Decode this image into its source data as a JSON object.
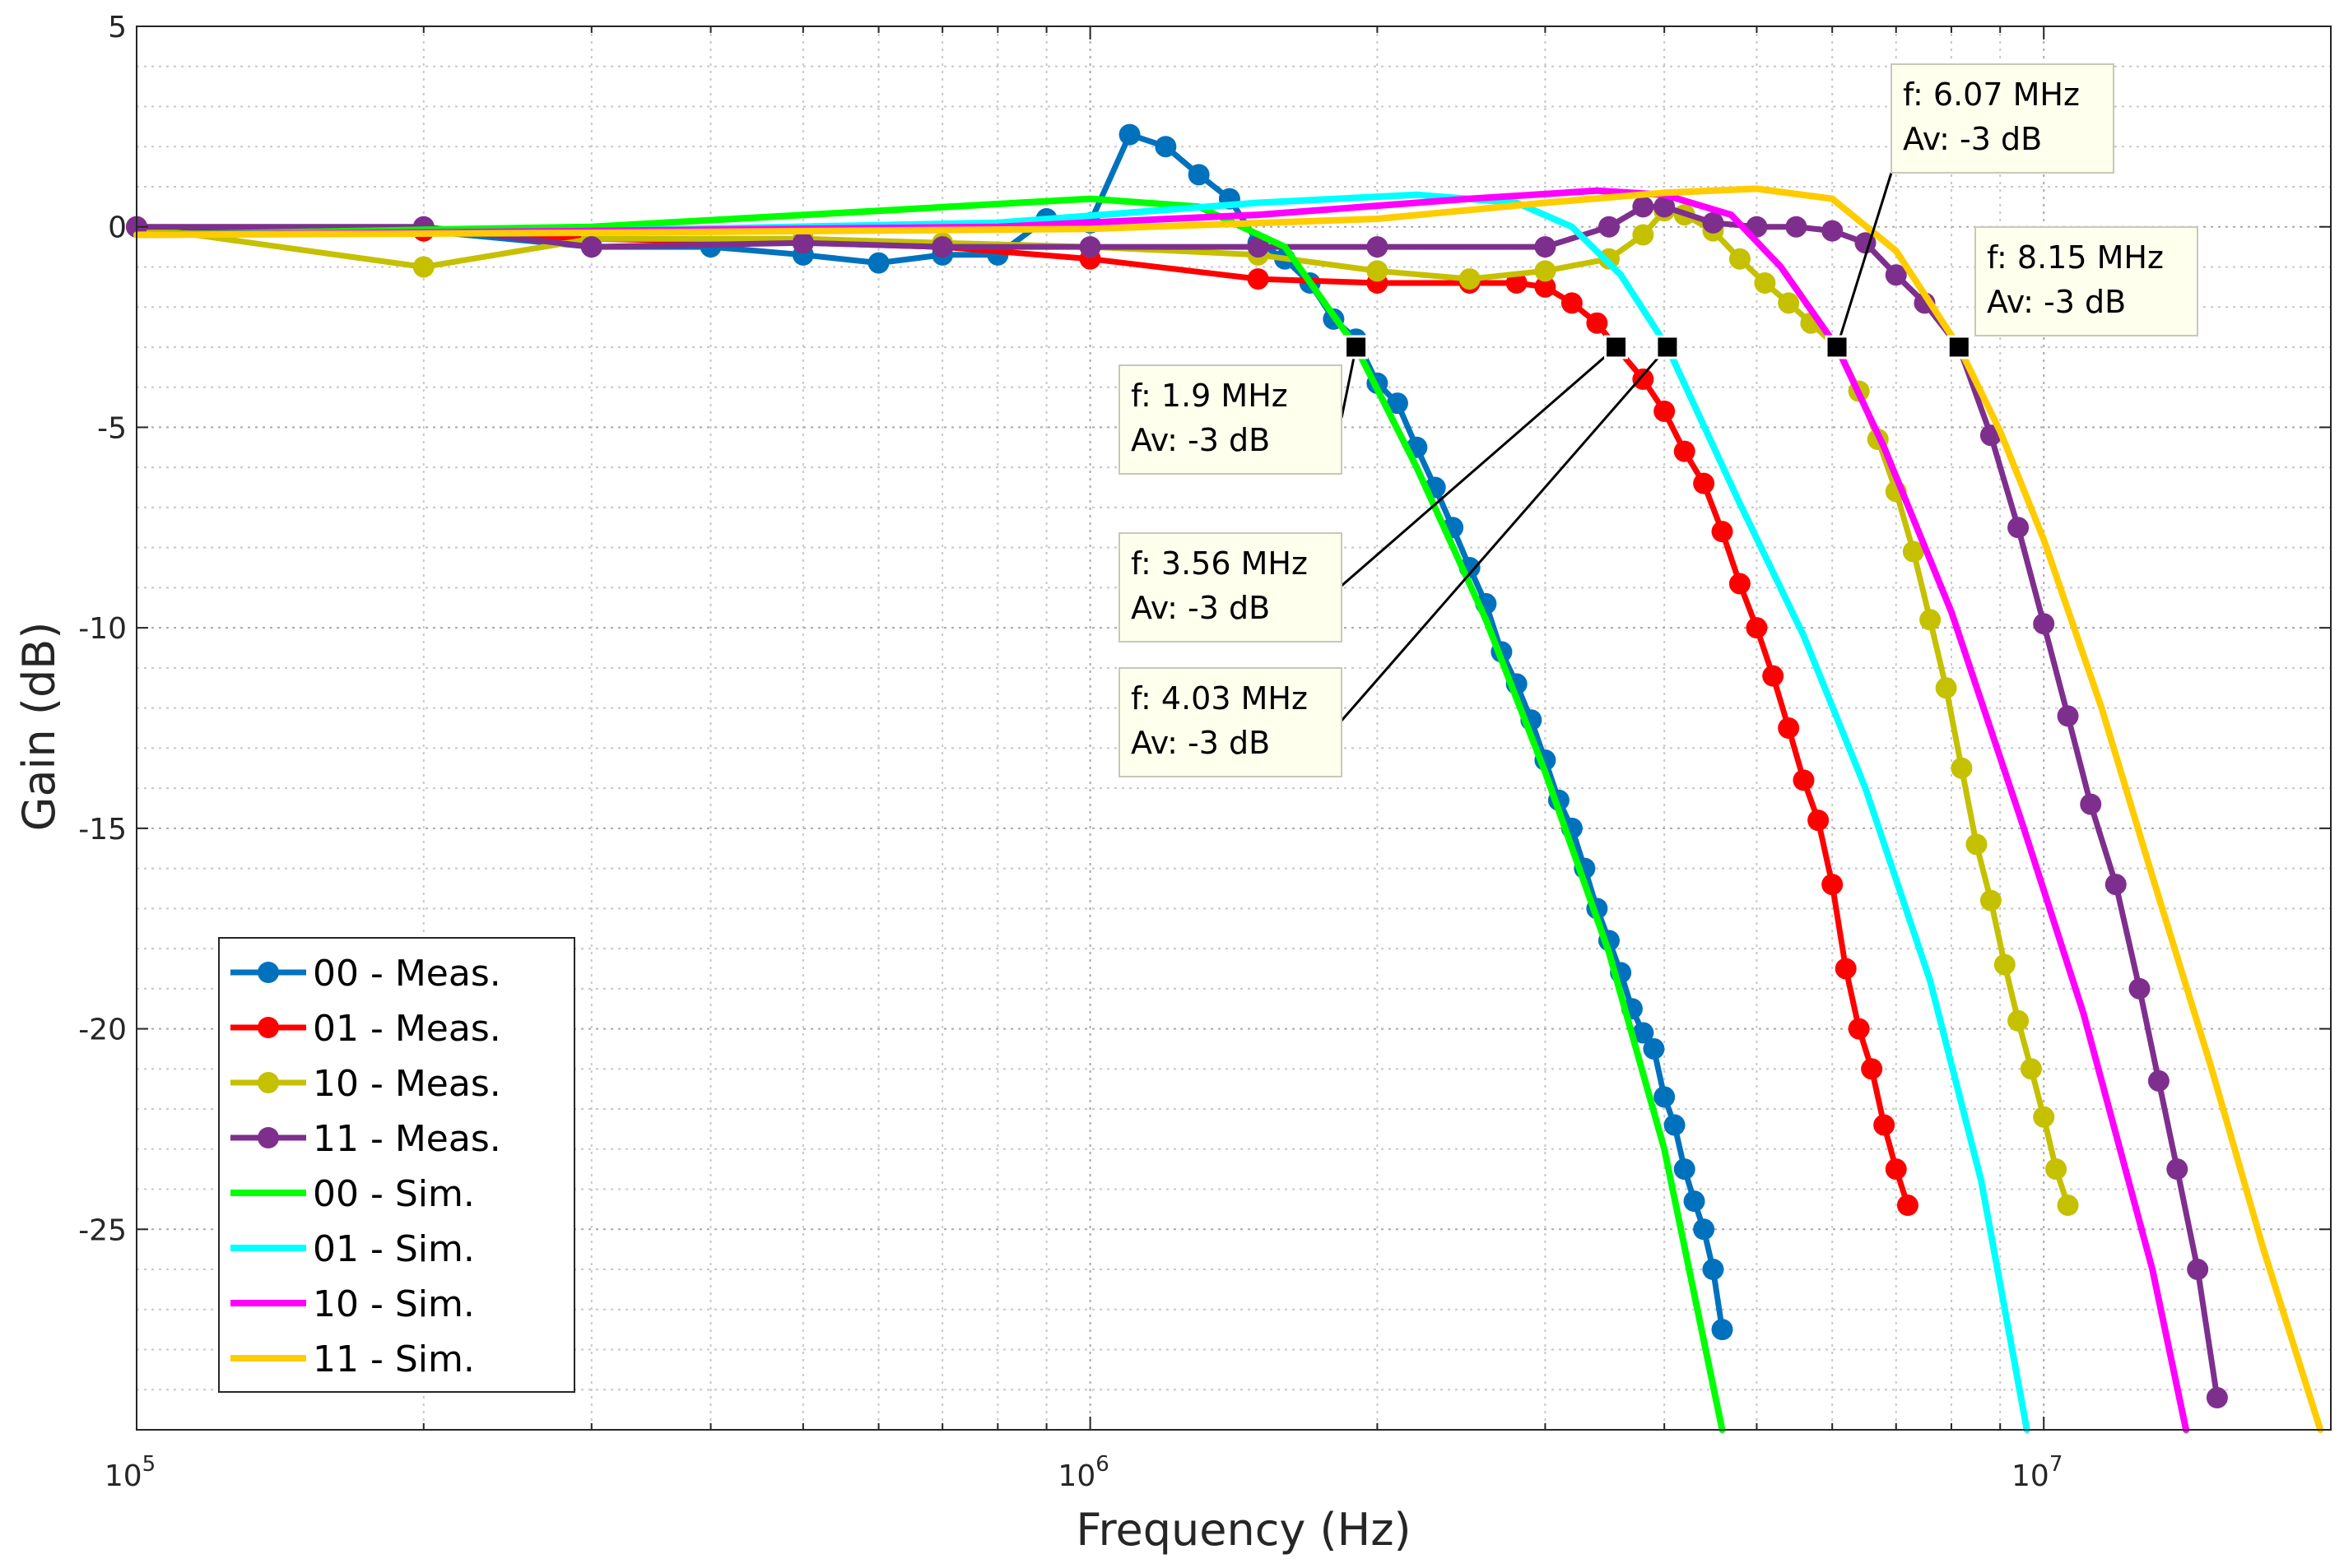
{
  "chart_data": {
    "type": "line",
    "xlabel": "Frequency (Hz)",
    "ylabel": "Gain (dB)",
    "xscale": "log",
    "xlim": [
      100000,
      20000000
    ],
    "ylim": [
      -30,
      5
    ],
    "grid": "major and minor",
    "legend_position": "bottom-left",
    "y_ticks": [
      5,
      0,
      -5,
      -10,
      -15,
      -20,
      -25
    ],
    "x_ticks": [
      {
        "value": 100000,
        "base": "10",
        "exp": "5"
      },
      {
        "value": 1000000,
        "base": "10",
        "exp": "6"
      },
      {
        "value": 10000000,
        "base": "10",
        "exp": "7"
      }
    ],
    "series": [
      {
        "name": "00 - Meas.",
        "color": "#0072BD",
        "style": "markers",
        "x": [
          100000,
          200000,
          300000,
          400000,
          500000,
          600000,
          700000,
          800000,
          900000,
          1000000,
          1100000,
          1200000,
          1300000,
          1400000,
          1500000,
          1600000,
          1700000,
          1800000,
          1900000,
          2000000,
          2100000,
          2200000,
          2300000,
          2400000,
          2500000,
          2600000,
          2700000,
          2800000,
          2900000,
          3000000,
          3100000,
          3200000,
          3300000,
          3400000,
          3500000,
          3600000,
          3700000,
          3800000,
          3900000,
          4000000,
          4100000,
          4200000,
          4300000,
          4400000,
          4500000,
          4600000
        ],
        "y": [
          0,
          -0.1,
          -0.5,
          -0.5,
          -0.7,
          -0.9,
          -0.7,
          -0.7,
          0.2,
          0.1,
          2.3,
          2.0,
          1.3,
          0.7,
          -0.4,
          -0.8,
          -1.4,
          -2.3,
          -2.8,
          -3.9,
          -4.4,
          -5.5,
          -6.5,
          -7.5,
          -8.5,
          -9.4,
          -10.6,
          -11.4,
          -12.3,
          -13.3,
          -14.3,
          -15.0,
          -16.0,
          -17.0,
          -17.8,
          -18.6,
          -19.5,
          -20.1,
          -20.5,
          -21.7,
          -22.4,
          -23.5,
          -24.3,
          -25.0,
          -26.0,
          -27.5
        ]
      },
      {
        "name": "01 - Meas.",
        "color": "#FF0000",
        "style": "markers",
        "x": [
          100000,
          200000,
          300000,
          500000,
          700000,
          1000000,
          1500000,
          2000000,
          2500000,
          2800000,
          3000000,
          3200000,
          3400000,
          3560000,
          3800000,
          4000000,
          4200000,
          4400000,
          4600000,
          4800000,
          5000000,
          5200000,
          5400000,
          5600000,
          5800000,
          6000000,
          6200000,
          6400000,
          6600000,
          6800000,
          7000000,
          7200000
        ],
        "y": [
          0,
          -0.1,
          -0.3,
          -0.4,
          -0.5,
          -0.8,
          -1.3,
          -1.4,
          -1.4,
          -1.4,
          -1.5,
          -1.9,
          -2.4,
          -3.0,
          -3.8,
          -4.6,
          -5.6,
          -6.4,
          -7.6,
          -8.9,
          -10.0,
          -11.2,
          -12.5,
          -13.8,
          -14.8,
          -16.4,
          -18.5,
          -20.0,
          -21.0,
          -22.4,
          -23.5,
          -24.4
        ]
      },
      {
        "name": "10 - Meas.",
        "color": "#C5C000",
        "style": "markers",
        "x": [
          100000,
          200000,
          300000,
          500000,
          700000,
          1000000,
          1500000,
          2000000,
          2500000,
          3000000,
          3500000,
          3800000,
          4000000,
          4200000,
          4500000,
          4800000,
          5100000,
          5400000,
          5700000,
          6070000,
          6400000,
          6700000,
          7000000,
          7300000,
          7600000,
          7900000,
          8200000,
          8500000,
          8800000,
          9100000,
          9400000,
          9700000,
          10000000,
          10300000,
          10600000
        ],
        "y": [
          0,
          -1.0,
          -0.3,
          -0.3,
          -0.4,
          -0.5,
          -0.7,
          -1.1,
          -1.3,
          -1.1,
          -0.8,
          -0.2,
          0.4,
          0.3,
          -0.1,
          -0.8,
          -1.4,
          -1.9,
          -2.4,
          -3.0,
          -4.1,
          -5.3,
          -6.6,
          -8.1,
          -9.8,
          -11.5,
          -13.5,
          -15.4,
          -16.8,
          -18.4,
          -19.8,
          -21.0,
          -22.2,
          -23.5,
          -24.4
        ]
      },
      {
        "name": "11 - Meas.",
        "color": "#7E2F8E",
        "style": "markers",
        "x": [
          100000,
          200000,
          300000,
          500000,
          700000,
          1000000,
          1500000,
          2000000,
          3000000,
          3500000,
          3800000,
          4000000,
          4500000,
          5000000,
          5500000,
          6000000,
          6500000,
          7000000,
          7500000,
          8150000,
          8800000,
          9400000,
          10000000,
          10600000,
          11200000,
          11900000,
          12600000,
          13200000,
          13800000,
          14500000,
          15200000
        ],
        "y": [
          0,
          0,
          -0.5,
          -0.4,
          -0.5,
          -0.5,
          -0.5,
          -0.5,
          -0.5,
          0.0,
          0.5,
          0.5,
          0.1,
          0,
          0,
          -0.1,
          -0.4,
          -1.2,
          -1.9,
          -3.0,
          -5.2,
          -7.5,
          -9.9,
          -12.2,
          -14.4,
          -16.4,
          -19.0,
          -21.3,
          -23.5,
          -26.0,
          -29.2
        ]
      },
      {
        "name": "00 - Sim.",
        "color": "#00FF00",
        "style": "line",
        "x": [
          100000,
          300000,
          600000,
          1000000,
          1300000,
          1600000,
          1900000,
          2200000,
          2600000,
          3000000,
          3500000,
          4000000,
          4600000
        ],
        "y": [
          -0.2,
          0.0,
          0.4,
          0.7,
          0.5,
          -0.5,
          -3.0,
          -6.0,
          -9.8,
          -13.6,
          -18.1,
          -23.0,
          -30.0
        ]
      },
      {
        "name": "01 - Sim.",
        "color": "#00FFFF",
        "style": "line",
        "x": [
          100000,
          300000,
          800000,
          1500000,
          2200000,
          2800000,
          3200000,
          3600000,
          4030000,
          4800000,
          5600000,
          6500000,
          7600000,
          8600000,
          9600000
        ],
        "y": [
          -0.2,
          -0.1,
          0.1,
          0.6,
          0.8,
          0.6,
          0,
          -1.2,
          -3.0,
          -6.9,
          -10.2,
          -14.0,
          -18.8,
          -23.8,
          -30.0
        ]
      },
      {
        "name": "10 - Sim.",
        "color": "#FF00FF",
        "style": "line",
        "x": [
          100000,
          300000,
          800000,
          1500000,
          2500000,
          3400000,
          4000000,
          4700000,
          5300000,
          6070000,
          6800000,
          8000000,
          9500000,
          11000000,
          13000000,
          14100000
        ],
        "y": [
          -0.2,
          -0.1,
          0,
          0.3,
          0.7,
          0.9,
          0.8,
          0.3,
          -1.0,
          -3.0,
          -5.5,
          -9.6,
          -14.9,
          -19.6,
          -26.0,
          -30.0
        ]
      },
      {
        "name": "11 - Sim.",
        "color": "#FFCC00",
        "style": "line",
        "x": [
          100000,
          300000,
          1000000,
          2000000,
          3000000,
          4000000,
          5000000,
          6000000,
          7000000,
          8150000,
          9000000,
          10000000,
          11500000,
          13000000,
          15000000,
          17000000,
          19500000
        ],
        "y": [
          -0.2,
          -0.15,
          -0.05,
          0.2,
          0.6,
          0.85,
          0.95,
          0.7,
          -0.6,
          -3.0,
          -5.1,
          -7.8,
          -12.0,
          -16.2,
          -21.0,
          -25.5,
          -30.0
        ]
      }
    ],
    "datatips": [
      {
        "series": "00 - Meas.",
        "x": 1900000,
        "y": -3,
        "line1": "f: 1.9 MHz",
        "line2": "Av: -3 dB"
      },
      {
        "series": "01 - Meas.",
        "x": 3560000,
        "y": -3,
        "line1": "f: 3.56 MHz",
        "line2": "Av: -3 dB"
      },
      {
        "series": "01 - Sim.",
        "x": 4030000,
        "y": -3,
        "line1": "f: 4.03 MHz",
        "line2": "Av: -3 dB"
      },
      {
        "series": "10 - Meas.",
        "x": 6070000,
        "y": -3,
        "line1": "f: 6.07 MHz",
        "line2": "Av: -3 dB"
      },
      {
        "series": "11 - Meas.",
        "x": 8150000,
        "y": -3,
        "line1": "f: 8.15 MHz",
        "line2": "Av: -3 dB"
      }
    ]
  }
}
